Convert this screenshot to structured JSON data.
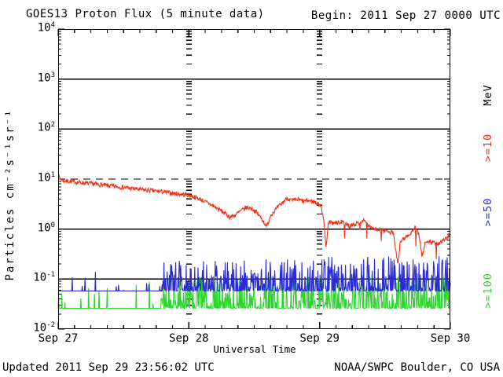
{
  "chart_data": {
    "type": "line",
    "title": "GOES13 Proton Flux (5 minute data)",
    "begin_label": "Begin: 2011 Sep 27 0000 UTC",
    "updated_label": "Updated 2011 Sep 29 23:56:02 UTC",
    "source_label": "NOAA/SWPC Boulder, CO USA",
    "xlabel": "Universal Time",
    "ylabel": "Particles cm⁻²s⁻¹sr⁻¹",
    "right_axis_unit": "MeV",
    "x_ticks": [
      "Sep 27",
      "Sep 28",
      "Sep 29",
      "Sep 30"
    ],
    "x_hours": [
      0,
      24,
      48,
      72
    ],
    "xlim_hours": [
      0,
      72
    ],
    "minor_tick_hours": 3,
    "y_tick_base": "10",
    "y_exponents": [
      4,
      3,
      2,
      1,
      0,
      -1,
      -2
    ],
    "ylim": [
      0.01,
      10000
    ],
    "grid": {
      "solid_decades": [
        3,
        2,
        0,
        -1
      ],
      "dashed_decade": 1,
      "day_tick_columns_hours": [
        24,
        48
      ]
    },
    "sample_minutes": 5,
    "series": [
      {
        "name": ">=10",
        "color": "#ef3015",
        "style": "trend",
        "seed": 7,
        "noise_decades": 0.045,
        "dip_after_hour": 49.6,
        "dip_prob": 0.05,
        "dip_decades": 0.33,
        "anchors": [
          [
            0,
            12
          ],
          [
            0.3,
            10.5
          ],
          [
            1,
            9.3
          ],
          [
            2,
            9.0
          ],
          [
            3,
            8.8
          ],
          [
            5,
            8.3
          ],
          [
            7,
            7.9
          ],
          [
            9,
            7.4
          ],
          [
            11,
            7.0
          ],
          [
            13,
            6.6
          ],
          [
            15,
            6.2
          ],
          [
            17,
            5.9
          ],
          [
            19,
            5.6
          ],
          [
            21,
            5.2
          ],
          [
            23,
            4.9
          ],
          [
            24,
            4.8
          ],
          [
            26,
            4.0
          ],
          [
            28,
            3.1
          ],
          [
            30,
            2.3
          ],
          [
            31.5,
            1.75
          ],
          [
            32.5,
            1.9
          ],
          [
            33.5,
            2.3
          ],
          [
            34.5,
            2.7
          ],
          [
            35.5,
            2.6
          ],
          [
            36.5,
            2.1
          ],
          [
            37.5,
            1.55
          ],
          [
            38.3,
            1.1
          ],
          [
            39,
            1.9
          ],
          [
            40,
            2.5
          ],
          [
            41,
            3.2
          ],
          [
            42,
            4.2
          ],
          [
            43,
            3.7
          ],
          [
            44,
            3.9
          ],
          [
            45,
            3.6
          ],
          [
            46,
            3.7
          ],
          [
            47,
            3.5
          ],
          [
            47.6,
            3.3
          ],
          [
            48.3,
            2.8
          ],
          [
            48.8,
            1.5
          ],
          [
            49.2,
            0.38
          ],
          [
            49.6,
            1.4
          ],
          [
            50.5,
            1.3
          ],
          [
            52,
            1.4
          ],
          [
            53.5,
            1.15
          ],
          [
            55,
            1.3
          ],
          [
            56,
            1.5
          ],
          [
            57,
            1.15
          ],
          [
            58.5,
            1.0
          ],
          [
            60,
            0.9
          ],
          [
            61.5,
            0.85
          ],
          [
            62.4,
            0.2
          ],
          [
            62.8,
            0.55
          ],
          [
            63.5,
            0.65
          ],
          [
            64.4,
            0.75
          ],
          [
            65.5,
            1.05
          ],
          [
            66.2,
            0.8
          ],
          [
            66.8,
            0.28
          ],
          [
            67.5,
            0.6
          ],
          [
            68.7,
            0.55
          ],
          [
            69.8,
            0.5
          ],
          [
            70.8,
            0.6
          ],
          [
            71.6,
            0.75
          ],
          [
            72,
            0.85
          ]
        ]
      },
      {
        "name": ">=50",
        "color": "#2b2bd5",
        "style": "spiky",
        "seed": 11,
        "base": 0.058,
        "segments": [
          {
            "from": 0,
            "to": 18.9,
            "spike_prob": 0.07,
            "spike_max": 0.18
          },
          {
            "from": 18.9,
            "to": 48,
            "spike_prob": 0.72,
            "spike_max": 0.25
          },
          {
            "from": 48,
            "to": 72,
            "spike_prob": 0.74,
            "spike_max": 0.29
          }
        ]
      },
      {
        "name": ">=100",
        "color": "#2ed52e",
        "style": "spiky",
        "seed": 23,
        "base": 0.026,
        "segments": [
          {
            "from": 0,
            "to": 18.9,
            "spike_prob": 0.07,
            "spike_max": 0.1
          },
          {
            "from": 18.9,
            "to": 48,
            "spike_prob": 0.72,
            "spike_max": 0.115
          },
          {
            "from": 48,
            "to": 72,
            "spike_prob": 0.74,
            "spike_max": 0.13
          }
        ]
      }
    ]
  }
}
